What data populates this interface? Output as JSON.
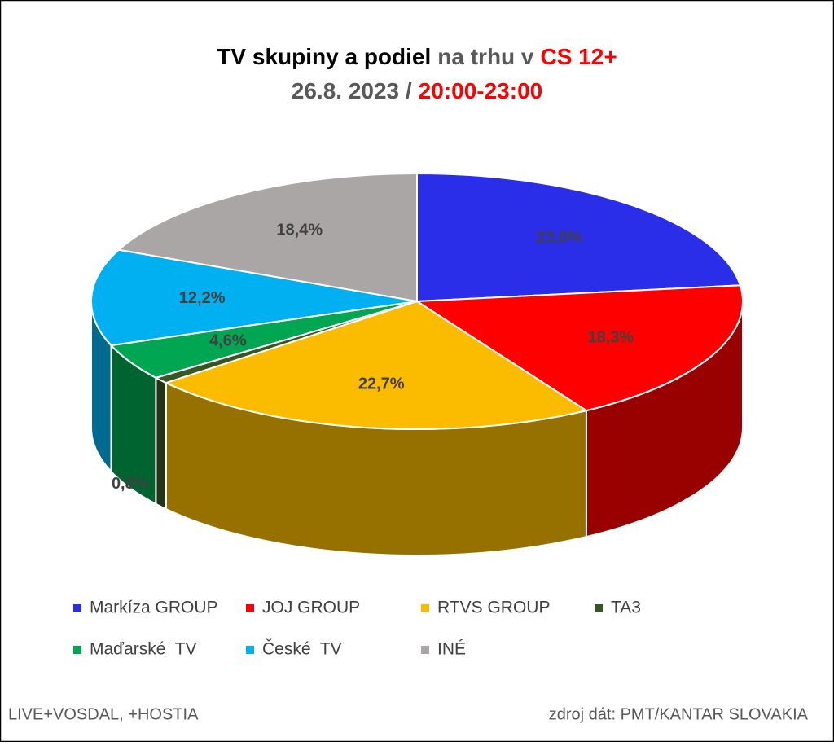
{
  "chart_data": {
    "type": "pie3d",
    "title": [
      {
        "text": "TV skupiny a podiel",
        "color": "#000000"
      },
      {
        "text": "na trhu v",
        "color": "#595959"
      },
      {
        "text": "CS 12+",
        "color": "#ff0000"
      }
    ],
    "subtitle": [
      {
        "text": "26.8. 2023 /",
        "color": "#595959"
      },
      {
        "text": "20:00-23:00",
        "color": "#ff0000"
      }
    ],
    "categories": [
      "Markíza GROUP",
      "JOJ GROUP",
      "RTVS GROUP",
      "TA3",
      "Maďarské  TV",
      "České  TV",
      "INÉ"
    ],
    "values": [
      23.0,
      18.3,
      22.7,
      0.8,
      4.6,
      12.2,
      18.4
    ],
    "value_labels": [
      "23,0%",
      "18,3%",
      "22,7%",
      "0,8%",
      "4,6%",
      "12,2%",
      "18,4%"
    ],
    "colors": [
      "#2b2ee8",
      "#ff0000",
      "#fbbc00",
      "#375623",
      "#00a651",
      "#00b0f0",
      "#aaa6a6"
    ],
    "footer_left": "LIVE+VOSDAL, +HOSTIA",
    "footer_right": "zdroj dát: PMT/KANTAR SLOVAKIA"
  }
}
